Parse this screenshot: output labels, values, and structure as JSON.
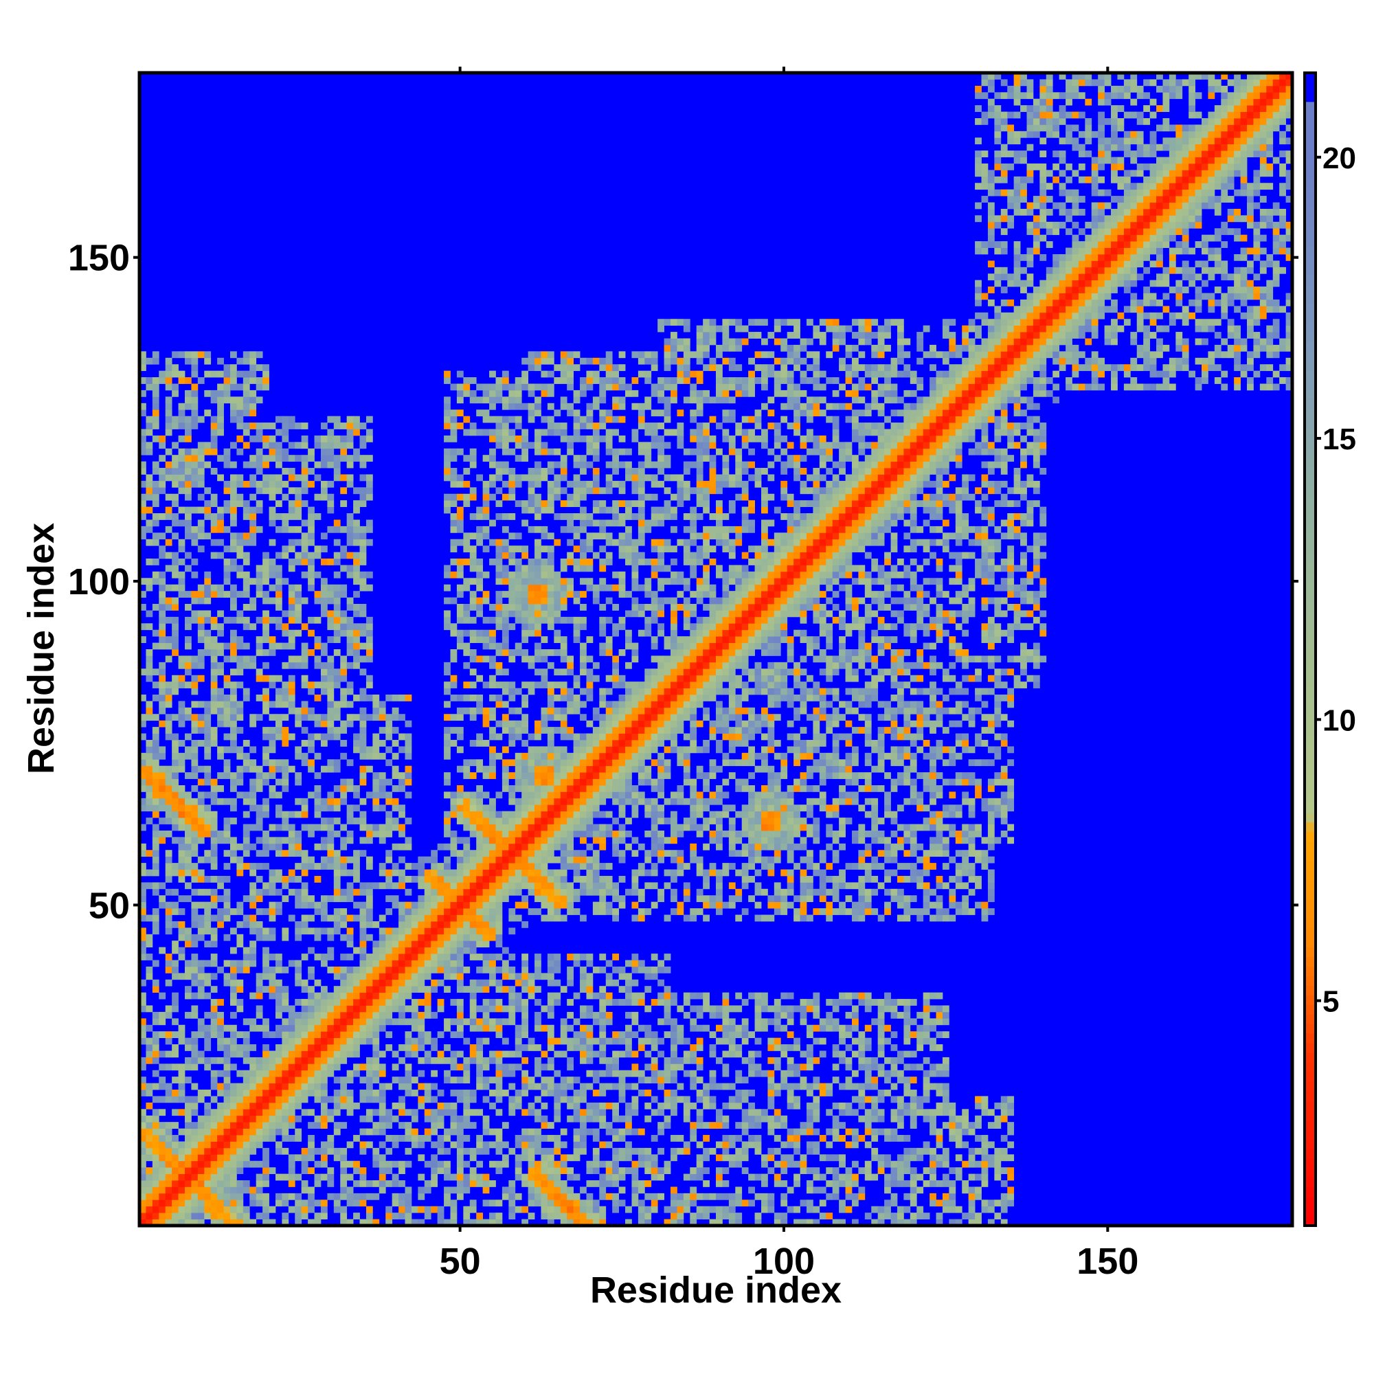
{
  "chart_data": {
    "type": "heatmap",
    "title": "",
    "xlabel": "Residue index",
    "ylabel": "Residue index",
    "n_residues": 178,
    "xlim": [
      0.5,
      178.5
    ],
    "ylim": [
      0.5,
      178.5
    ],
    "x_ticks": [
      50,
      100,
      150
    ],
    "y_ticks": [
      50,
      100,
      150
    ],
    "x_tick_labels": [
      "50",
      "100",
      "150"
    ],
    "y_tick_labels": [
      "50",
      "100",
      "150"
    ],
    "colorbar": {
      "range": [
        1,
        21.5
      ],
      "ticks": [
        5,
        10,
        15,
        20
      ],
      "tick_labels": [
        "5",
        "10",
        "15",
        "20"
      ],
      "stops": [
        {
          "value": 1,
          "color": "#ff0000"
        },
        {
          "value": 4,
          "color": "#ff3300"
        },
        {
          "value": 6,
          "color": "#ff8800"
        },
        {
          "value": 8,
          "color": "#ffa500"
        },
        {
          "value": 8.3,
          "color": "#b5c88a"
        },
        {
          "value": 11,
          "color": "#a5be8e"
        },
        {
          "value": 14,
          "color": "#8fb0a2"
        },
        {
          "value": 17,
          "color": "#7a96be"
        },
        {
          "value": 20,
          "color": "#6b7fc8"
        },
        {
          "value": 21.5,
          "color": "#0000ff"
        }
      ]
    },
    "background_color": "#0000ff",
    "cutoff": 20,
    "diagonal_value": 3.8,
    "contact_features": [
      {
        "i": 1,
        "j": 178,
        "type": "helix_band",
        "note": "main diagonal, i-i+1 contacts"
      },
      {
        "i": 60,
        "j": 61,
        "type": "antiparallel",
        "center": [
          58,
          58
        ],
        "length": 16
      },
      {
        "i": 50,
        "j": 50,
        "type": "antiparallel",
        "center": [
          50,
          50
        ],
        "length": 10
      },
      {
        "i": 5,
        "j": 10,
        "type": "antiparallel",
        "center": [
          8,
          8
        ],
        "length": 18
      },
      {
        "i": 5,
        "j": 66,
        "type": "antiparallel",
        "center": [
          6,
          66
        ],
        "length": 10
      },
      {
        "i": 68,
        "j": 3,
        "type": "antiparallel",
        "center": [
          66,
          4
        ],
        "length": 10
      },
      {
        "i": 62,
        "j": 70,
        "type": "parallel_patch",
        "center": [
          63,
          70
        ]
      },
      {
        "i": 98,
        "j": 63,
        "type": "patch",
        "center": [
          98,
          63
        ]
      },
      {
        "i": 62,
        "j": 98,
        "type": "patch",
        "center": [
          62,
          98
        ]
      }
    ],
    "contact_regions": [
      {
        "x": [
          1,
          42
        ],
        "y": [
          1,
          42
        ]
      },
      {
        "x": [
          1,
          36
        ],
        "y": [
          1,
          125
        ]
      },
      {
        "x": [
          1,
          125
        ],
        "y": [
          1,
          36
        ]
      },
      {
        "x": [
          42,
          82
        ],
        "y": [
          1,
          42
        ]
      },
      {
        "x": [
          1,
          42
        ],
        "y": [
          42,
          82
        ]
      },
      {
        "x": [
          40,
          135
        ],
        "y": [
          1,
          20
        ]
      },
      {
        "x": [
          1,
          20
        ],
        "y": [
          40,
          135
        ]
      },
      {
        "x": [
          48,
          132
        ],
        "y": [
          48,
          132
        ]
      },
      {
        "x": [
          60,
          135
        ],
        "y": [
          60,
          100
        ]
      },
      {
        "x": [
          60,
          100
        ],
        "y": [
          60,
          135
        ]
      },
      {
        "x": [
          80,
          140
        ],
        "y": [
          84,
          140
        ]
      },
      {
        "x": [
          130,
          178
        ],
        "y": [
          130,
          178
        ]
      }
    ]
  }
}
